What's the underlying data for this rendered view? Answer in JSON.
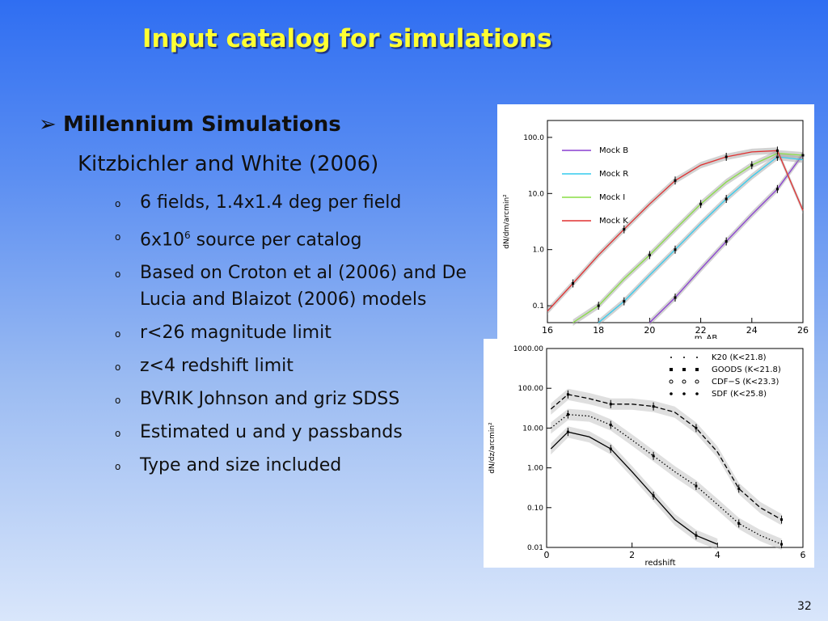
{
  "title": "Input catalog for simulations",
  "main_bullet": {
    "arrow": "➢",
    "text": "Millennium Simulations"
  },
  "sub_heading": "Kitzbichler and White (2006)",
  "items": [
    {
      "text": "6 fields, 1.4x1.4 deg per field"
    },
    {
      "pre": "6x10",
      "sup": "6",
      "post": " source per catalog"
    },
    {
      "text": "Based on Croton et al (2006) and De Lucia and Blaizot (2006) models"
    },
    {
      "text": "r<26 magnitude limit"
    },
    {
      "text": "z<4 redshift limit"
    },
    {
      "text": "BVRIK Johnson and griz SDSS"
    },
    {
      "text": "Estimated u and y passbands"
    },
    {
      "text": "Type and size included"
    }
  ],
  "bullet_marker": "o",
  "slide_number": "32",
  "chart_data": [
    {
      "type": "line",
      "xlabel": "m_AB",
      "ylabel": "dN/dm/arcmin²",
      "x_ticks": [
        "16",
        "18",
        "20",
        "22",
        "24",
        "26"
      ],
      "y_ticks": [
        "0.1",
        "1.0",
        "10.0",
        "100.0"
      ],
      "y_scale": "log",
      "xlim": [
        16,
        26
      ],
      "ylim": [
        0.05,
        200
      ],
      "legend_position": "top-left",
      "x": [
        16,
        17,
        18,
        19,
        20,
        21,
        22,
        23,
        24,
        25,
        26
      ],
      "series": [
        {
          "name": "Mock B",
          "color": "#8a3fd1",
          "values": [
            null,
            null,
            null,
            null,
            0.05,
            0.14,
            0.45,
            1.4,
            4.2,
            12,
            50
          ]
        },
        {
          "name": "Mock R",
          "color": "#33ccee",
          "values": [
            null,
            null,
            0.05,
            0.12,
            0.35,
            1.0,
            2.9,
            8.0,
            20,
            45,
            40
          ]
        },
        {
          "name": "Mock I",
          "color": "#88dd44",
          "values": [
            null,
            0.05,
            0.1,
            0.3,
            0.8,
            2.3,
            6.5,
            16,
            32,
            52,
            48
          ]
        },
        {
          "name": "Mock K",
          "color": "#e03030",
          "values": [
            0.08,
            0.25,
            0.8,
            2.3,
            6.5,
            17,
            32,
            45,
            55,
            58,
            5
          ]
        }
      ]
    },
    {
      "type": "line",
      "xlabel": "redshift",
      "ylabel": "dN/dz/arcmin²",
      "x_ticks": [
        "0",
        "2",
        "4",
        "6"
      ],
      "y_ticks": [
        "0.01",
        "0.10",
        "1.00",
        "10.00",
        "100.00",
        "1000.00"
      ],
      "y_scale": "log",
      "xlim": [
        0,
        6
      ],
      "ylim": [
        0.01,
        1000
      ],
      "legend_position": "top-right",
      "legend": [
        {
          "name": "K20 (K<21.8)",
          "marker": "small-dot"
        },
        {
          "name": "GOODS (K<21.8)",
          "marker": "filled-square"
        },
        {
          "name": "CDF−S (K<23.3)",
          "marker": "open-circle"
        },
        {
          "name": "SDF (K<25.8)",
          "marker": "star"
        }
      ],
      "x": [
        0.1,
        0.5,
        1.0,
        1.5,
        2.0,
        2.5,
        3.0,
        3.5,
        4.0,
        4.5,
        5.0,
        5.5,
        6.0
      ],
      "series": [
        {
          "style": "solid",
          "values": [
            3,
            8,
            6,
            3,
            0.8,
            0.2,
            0.05,
            0.02,
            0.012,
            null,
            null,
            null,
            null
          ]
        },
        {
          "style": "dotted",
          "values": [
            10,
            22,
            20,
            12,
            5,
            2,
            0.8,
            0.35,
            0.12,
            0.04,
            0.02,
            0.012,
            null
          ]
        },
        {
          "style": "dashed",
          "values": [
            30,
            70,
            55,
            40,
            40,
            35,
            25,
            10,
            2.5,
            0.3,
            0.1,
            0.05,
            null
          ]
        }
      ]
    }
  ]
}
